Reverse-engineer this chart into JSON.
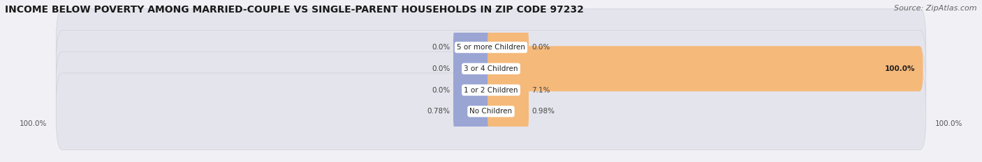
{
  "title": "INCOME BELOW POVERTY AMONG MARRIED-COUPLE VS SINGLE-PARENT HOUSEHOLDS IN ZIP CODE 97232",
  "source": "Source: ZipAtlas.com",
  "categories": [
    "No Children",
    "1 or 2 Children",
    "3 or 4 Children",
    "5 or more Children"
  ],
  "married_values": [
    0.78,
    0.0,
    0.0,
    0.0
  ],
  "single_values": [
    0.98,
    7.1,
    100.0,
    0.0
  ],
  "married_color": "#9aa5d4",
  "single_color": "#f5b97a",
  "bar_bg_color": "#e4e4ec",
  "bar_bg_outline": "#d0d0dc",
  "axis_label_left": "100.0%",
  "axis_label_right": "100.0%",
  "figsize": [
    14.06,
    2.33
  ],
  "dpi": 100,
  "title_fontsize": 10,
  "source_fontsize": 8,
  "label_fontsize": 7.5,
  "cat_fontsize": 7.5,
  "bar_height": 0.6,
  "background_color": "#f0f0f5"
}
